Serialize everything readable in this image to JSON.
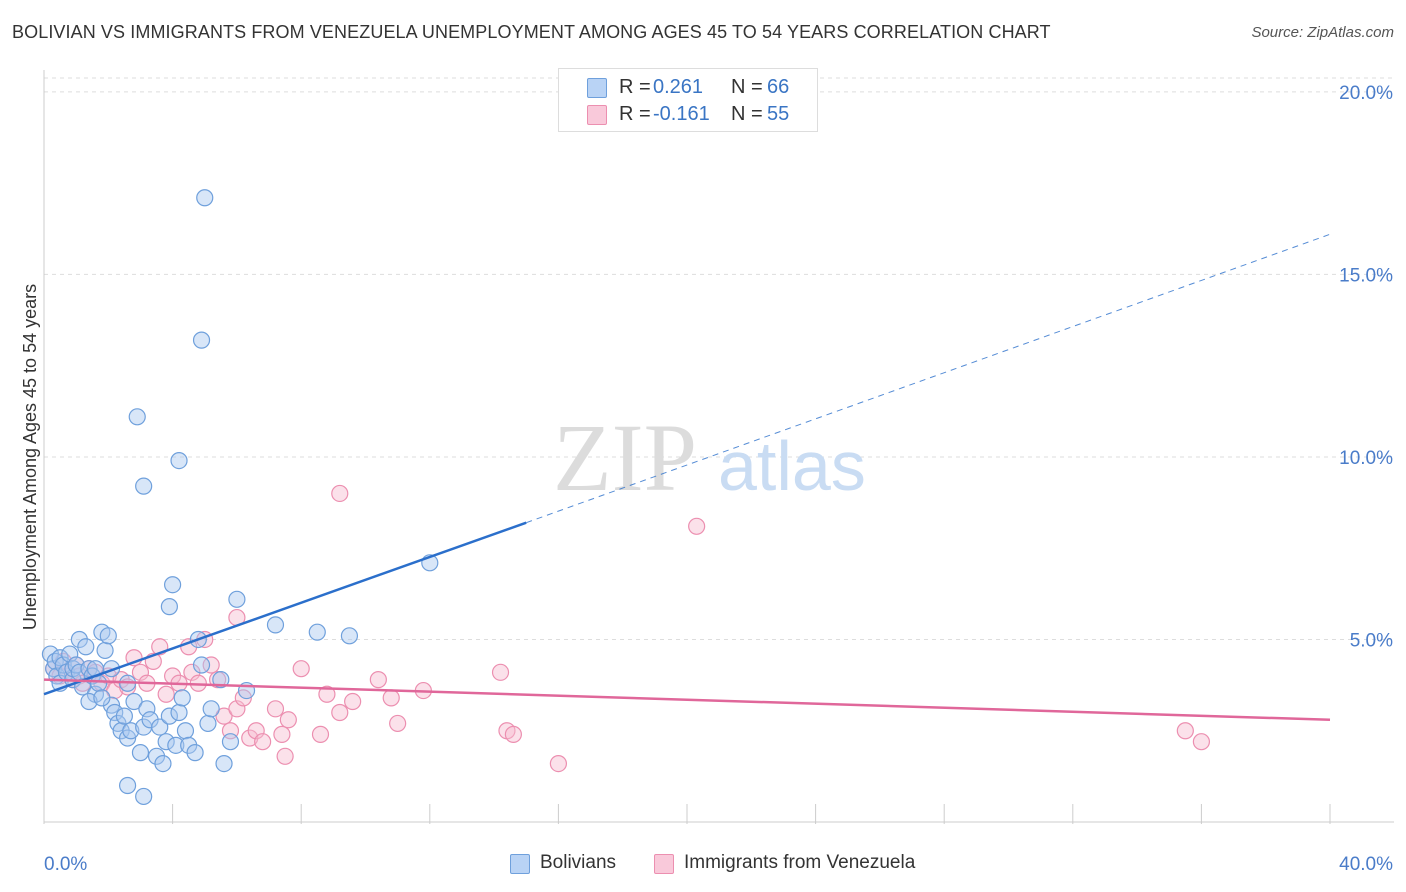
{
  "header": {
    "title": "BOLIVIAN VS IMMIGRANTS FROM VENEZUELA UNEMPLOYMENT AMONG AGES 45 TO 54 YEARS CORRELATION CHART",
    "source": "Source: ZipAtlas.com"
  },
  "stats": [
    {
      "r_label": "R =",
      "r_value": "0.261",
      "n_label": "N =",
      "n_value": "66"
    },
    {
      "r_label": "R =",
      "r_value": "-0.161",
      "n_label": "N =",
      "n_value": "55"
    }
  ],
  "watermark": {
    "zip": "ZIP",
    "atlas": "atlas"
  },
  "legend": {
    "bolivians": "Bolivians",
    "venezuela": "Immigrants from Venezuela"
  },
  "colors": {
    "blue_fill": "#a8c8f0",
    "blue_stroke": "#6fa0dc",
    "blue_line": "#2b6fcb",
    "pink_fill": "#f7bcd0",
    "pink_stroke": "#ec8fb0",
    "pink_line": "#e0679a",
    "grid": "#dddddd",
    "tick_label": "#4a7cc9"
  },
  "chart_data": {
    "type": "scatter",
    "title": "BOLIVIAN VS IMMIGRANTS FROM VENEZUELA UNEMPLOYMENT AMONG AGES 45 TO 54 YEARS CORRELATION CHART",
    "xlabel": "",
    "ylabel": "Unemployment Among Ages 45 to 54 years",
    "xlim": [
      0,
      40
    ],
    "ylim": [
      0,
      20.6
    ],
    "x_tick_labels": [
      {
        "value": 0,
        "label": "0.0%"
      },
      {
        "value": 40,
        "label": "40.0%"
      }
    ],
    "y_tick_labels": [
      {
        "value": 5,
        "label": "5.0%"
      },
      {
        "value": 10,
        "label": "10.0%"
      },
      {
        "value": 15,
        "label": "15.0%"
      },
      {
        "value": 20,
        "label": "20.0%"
      }
    ],
    "x_minor_ticks": [
      4,
      8,
      12,
      16,
      20,
      24,
      28,
      32,
      36,
      40
    ],
    "series": [
      {
        "name": "Bolivians",
        "color": "#6fa0dc",
        "trend": {
          "x0": 0,
          "y0": 3.5,
          "x1": 15,
          "y1": 8.2,
          "x_dash_end": 40,
          "y_dash_end": 16.1
        },
        "points": [
          [
            0.2,
            4.6
          ],
          [
            0.3,
            4.2
          ],
          [
            0.35,
            4.4
          ],
          [
            0.4,
            4.0
          ],
          [
            0.5,
            4.5
          ],
          [
            0.5,
            3.8
          ],
          [
            0.6,
            4.3
          ],
          [
            0.7,
            4.1
          ],
          [
            0.8,
            4.6
          ],
          [
            0.9,
            3.9
          ],
          [
            0.9,
            4.2
          ],
          [
            1.0,
            4.3
          ],
          [
            1.1,
            5.0
          ],
          [
            1.1,
            4.1
          ],
          [
            1.2,
            3.7
          ],
          [
            1.3,
            4.8
          ],
          [
            1.4,
            4.2
          ],
          [
            1.5,
            4.0
          ],
          [
            1.6,
            3.5
          ],
          [
            1.7,
            3.8
          ],
          [
            1.8,
            5.2
          ],
          [
            1.9,
            4.7
          ],
          [
            2.0,
            5.1
          ],
          [
            2.1,
            3.2
          ],
          [
            2.2,
            3.0
          ],
          [
            2.3,
            2.7
          ],
          [
            2.4,
            2.5
          ],
          [
            2.5,
            2.9
          ],
          [
            2.6,
            2.3
          ],
          [
            1.4,
            3.3
          ],
          [
            1.6,
            4.2
          ],
          [
            1.8,
            3.4
          ],
          [
            2.1,
            4.2
          ],
          [
            2.6,
            3.8
          ],
          [
            2.7,
            2.5
          ],
          [
            2.8,
            3.3
          ],
          [
            3.0,
            1.9
          ],
          [
            3.1,
            2.6
          ],
          [
            3.2,
            3.1
          ],
          [
            3.3,
            2.8
          ],
          [
            3.5,
            1.8
          ],
          [
            3.6,
            2.6
          ],
          [
            3.8,
            2.2
          ],
          [
            3.9,
            2.9
          ],
          [
            4.1,
            2.1
          ],
          [
            4.2,
            3.0
          ],
          [
            4.3,
            3.4
          ],
          [
            4.4,
            2.5
          ],
          [
            3.7,
            1.6
          ],
          [
            3.9,
            5.9
          ],
          [
            4.0,
            6.5
          ],
          [
            4.5,
            2.1
          ],
          [
            4.7,
            1.9
          ],
          [
            4.9,
            4.3
          ],
          [
            5.1,
            2.7
          ],
          [
            5.2,
            3.1
          ],
          [
            5.6,
            1.6
          ],
          [
            5.5,
            3.9
          ],
          [
            6.0,
            6.1
          ],
          [
            4.8,
            5.0
          ],
          [
            5.8,
            2.2
          ],
          [
            6.3,
            3.6
          ],
          [
            3.1,
            0.7
          ],
          [
            2.6,
            1.0
          ],
          [
            4.2,
            9.9
          ],
          [
            2.9,
            11.1
          ]
        ]
      },
      {
        "name": "Immigrants from Venezuela",
        "color": "#ec8fb0",
        "trend": {
          "x0": 0,
          "y0": 3.9,
          "x1": 40,
          "y1": 2.8
        },
        "points": [
          [
            0.3,
            4.2
          ],
          [
            0.5,
            4.0
          ],
          [
            0.6,
            4.4
          ],
          [
            0.7,
            4.1
          ],
          [
            0.9,
            3.9
          ],
          [
            1.0,
            4.3
          ],
          [
            1.1,
            4.0
          ],
          [
            1.2,
            3.8
          ],
          [
            1.4,
            4.2
          ],
          [
            1.6,
            4.1
          ],
          [
            1.8,
            3.8
          ],
          [
            2.0,
            4.0
          ],
          [
            2.2,
            3.6
          ],
          [
            2.4,
            3.9
          ],
          [
            2.6,
            3.7
          ],
          [
            2.8,
            4.5
          ],
          [
            3.0,
            4.1
          ],
          [
            3.2,
            3.8
          ],
          [
            3.4,
            4.4
          ],
          [
            3.6,
            4.8
          ],
          [
            3.8,
            3.5
          ],
          [
            4.0,
            4.0
          ],
          [
            4.2,
            3.8
          ],
          [
            4.5,
            4.8
          ],
          [
            4.6,
            4.1
          ],
          [
            4.8,
            3.8
          ],
          [
            5.0,
            5.0
          ],
          [
            5.2,
            4.3
          ],
          [
            5.4,
            3.9
          ],
          [
            5.6,
            2.9
          ],
          [
            5.8,
            2.5
          ],
          [
            6.0,
            3.1
          ],
          [
            6.2,
            3.4
          ],
          [
            6.4,
            2.3
          ],
          [
            6.6,
            2.5
          ],
          [
            6.8,
            2.2
          ],
          [
            7.2,
            3.1
          ],
          [
            7.4,
            2.4
          ],
          [
            7.6,
            2.8
          ],
          [
            8.0,
            4.2
          ],
          [
            8.6,
            2.4
          ],
          [
            8.8,
            3.5
          ],
          [
            9.2,
            3.0
          ],
          [
            9.6,
            3.3
          ],
          [
            10.4,
            3.9
          ],
          [
            10.8,
            3.4
          ],
          [
            11.0,
            2.7
          ],
          [
            11.8,
            3.6
          ],
          [
            14.2,
            4.1
          ],
          [
            14.4,
            2.5
          ],
          [
            14.6,
            2.4
          ],
          [
            16.0,
            1.6
          ],
          [
            7.5,
            1.8
          ],
          [
            35.5,
            2.5
          ],
          [
            36.0,
            2.2
          ]
        ]
      }
    ],
    "outlier_points": {
      "Bolivians": [
        [
          5.0,
          17.1
        ],
        [
          4.9,
          13.2
        ],
        [
          3.1,
          9.2
        ],
        [
          12.0,
          7.1
        ],
        [
          7.2,
          5.4
        ],
        [
          8.5,
          5.2
        ],
        [
          9.5,
          5.1
        ]
      ],
      "Immigrants from Venezuela": [
        [
          9.2,
          9.0
        ],
        [
          20.3,
          8.1
        ],
        [
          6.0,
          5.6
        ]
      ]
    }
  }
}
